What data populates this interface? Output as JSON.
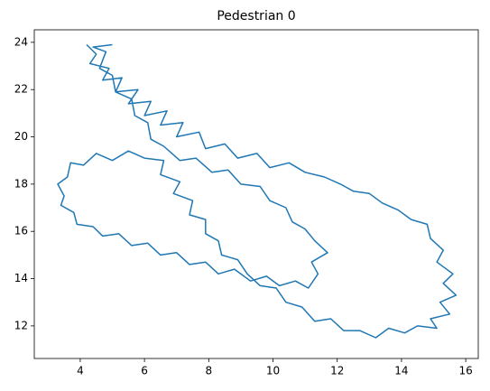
{
  "chart_data": {
    "type": "line",
    "title": "Pedestrian 0",
    "x": [
      4.2,
      4.5,
      4.3,
      4.9,
      4.7,
      5.3,
      5.1,
      5.8,
      5.5,
      6.2,
      6.0,
      6.7,
      6.5,
      7.2,
      7.0,
      7.7,
      7.9,
      8.5,
      8.9,
      9.5,
      9.9,
      10.5,
      11.0,
      11.6,
      12.1,
      12.5,
      13.0,
      13.4,
      13.9,
      14.3,
      14.8,
      14.9,
      15.3,
      15.1,
      15.6,
      15.3,
      15.7,
      15.2,
      15.5,
      14.9,
      15.1,
      14.5,
      14.1,
      13.6,
      13.2,
      12.7,
      12.2,
      11.8,
      11.3,
      10.9,
      10.4,
      10.1,
      9.6,
      9.2,
      8.9,
      8.4,
      8.3,
      7.9,
      7.9,
      7.4,
      7.5,
      6.9,
      7.1,
      6.5,
      6.6,
      6.0,
      5.5,
      5.0,
      4.5,
      4.1,
      3.7,
      3.6,
      3.3,
      3.5,
      3.4,
      3.8,
      3.9,
      4.4,
      4.7,
      5.2,
      5.6,
      6.1,
      6.5,
      7.0,
      7.4,
      7.9,
      8.3,
      8.8,
      9.3,
      9.8,
      10.2,
      10.7,
      11.1,
      11.4,
      11.2,
      11.7,
      11.3,
      11.0,
      10.6,
      10.4,
      9.9,
      9.6,
      9.0,
      8.6,
      8.1,
      7.6,
      7.1,
      6.6,
      6.2,
      6.1,
      5.7,
      5.6,
      5.1,
      5.0,
      4.6,
      4.8,
      4.4,
      5.0
    ],
    "series": [
      {
        "color": "#1f77b4",
        "values": [
          23.9,
          23.5,
          23.1,
          22.9,
          22.4,
          22.5,
          21.9,
          22.0,
          21.4,
          21.5,
          20.9,
          21.1,
          20.5,
          20.6,
          20.0,
          20.2,
          19.5,
          19.7,
          19.1,
          19.3,
          18.7,
          18.9,
          18.5,
          18.3,
          18.0,
          17.7,
          17.6,
          17.2,
          16.9,
          16.5,
          16.3,
          15.7,
          15.2,
          14.7,
          14.2,
          13.8,
          13.3,
          13.0,
          12.5,
          12.3,
          11.9,
          12.0,
          11.7,
          11.9,
          11.5,
          11.8,
          11.8,
          12.3,
          12.2,
          12.8,
          13.0,
          13.6,
          13.7,
          14.2,
          14.8,
          15.0,
          15.6,
          15.9,
          16.5,
          16.7,
          17.3,
          17.6,
          18.1,
          18.4,
          19.0,
          19.1,
          19.4,
          19.0,
          19.3,
          18.8,
          18.9,
          18.3,
          18.0,
          17.5,
          17.1,
          16.8,
          16.3,
          16.2,
          15.8,
          15.9,
          15.4,
          15.5,
          15.0,
          15.1,
          14.6,
          14.7,
          14.2,
          14.4,
          13.9,
          14.1,
          13.7,
          13.9,
          13.6,
          14.2,
          14.7,
          15.1,
          15.6,
          16.1,
          16.4,
          17.0,
          17.3,
          17.9,
          18.0,
          18.6,
          18.5,
          19.1,
          19.0,
          19.6,
          19.9,
          20.6,
          20.9,
          21.6,
          21.9,
          22.6,
          22.9,
          23.6,
          23.8,
          23.9
        ]
      }
    ],
    "xlim": [
      2.57,
      16.39
    ],
    "ylim": [
      10.62,
      24.53
    ],
    "xticks": [
      4,
      6,
      8,
      10,
      12,
      14,
      16
    ],
    "yticks": [
      12,
      14,
      16,
      18,
      20,
      22,
      24
    ]
  }
}
